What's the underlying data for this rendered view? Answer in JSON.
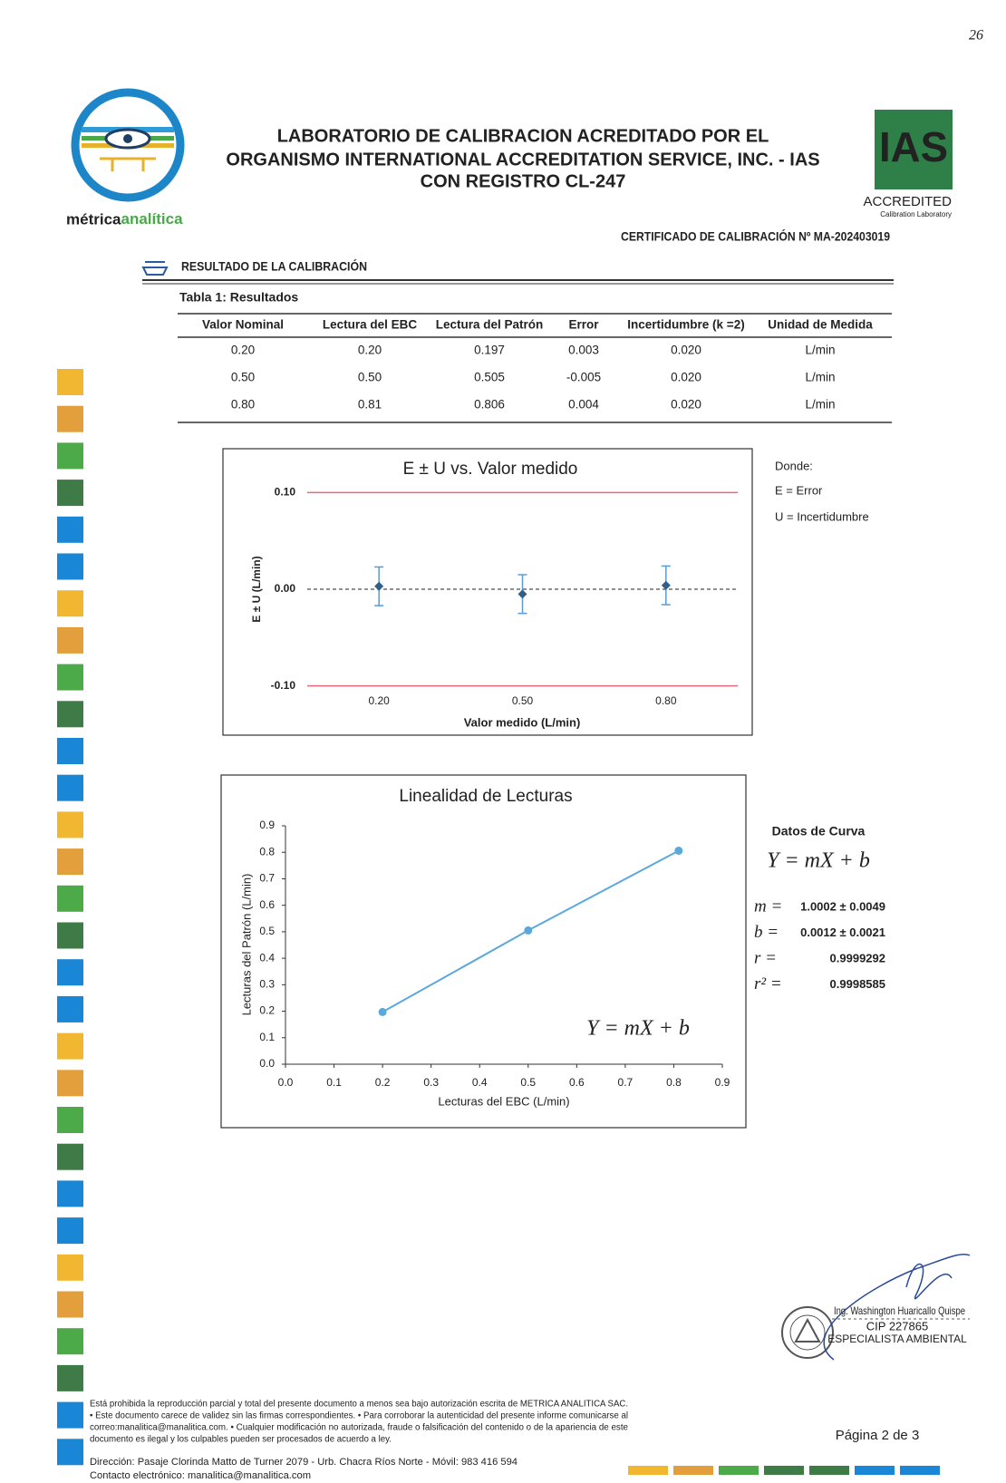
{
  "page_number": "26",
  "header": {
    "brand_1": "métrica",
    "brand_2": "analítica",
    "title_lines": [
      "LABORATORIO DE CALIBRACION ACREDITADO POR EL",
      "ORGANISMO INTERNATIONAL ACCREDITATION SERVICE, INC. - IAS",
      "CON REGISTRO CL-247"
    ],
    "badge": {
      "mark": "IAS",
      "status": "ACCREDITED",
      "scope": "Calibration Laboratory"
    },
    "certificate": "CERTIFICADO DE CALIBRACIÓN Nº MA-202403019"
  },
  "section": "RESULTADO DE LA CALIBRACIÓN",
  "table": {
    "caption": "Tabla 1: Resultados",
    "columns": [
      "Valor Nominal",
      "Lectura del EBC",
      "Lectura del Patrón",
      "Error",
      "Incertidumbre (k =2)",
      "Unidad de Medida"
    ],
    "rows": [
      [
        "0.20",
        "0.20",
        "0.197",
        "0.003",
        "0.020",
        "L/min"
      ],
      [
        "0.50",
        "0.50",
        "0.505",
        "-0.005",
        "0.020",
        "L/min"
      ],
      [
        "0.80",
        "0.81",
        "0.806",
        "0.004",
        "0.020",
        "L/min"
      ]
    ]
  },
  "chart_data": [
    {
      "type": "errorbar",
      "title": "E ± U vs. Valor medido",
      "xlabel": "Valor medido (L/min)",
      "ylabel": "E ± U (L/min)",
      "categories": [
        "0.20",
        "0.50",
        "0.80"
      ],
      "values": [
        0.003,
        -0.005,
        0.004
      ],
      "errors": [
        0.02,
        0.02,
        0.02
      ],
      "color": "#5b9bd5",
      "marker_color": "#2f5f8a",
      "ylim": [
        -0.12,
        0.12
      ],
      "yticks": [
        {
          "value": 0.1,
          "label": "0.10"
        },
        {
          "value": 0,
          "label": "0.00"
        },
        {
          "value": -0.1,
          "label": "-0.10"
        }
      ],
      "limits": [
        0.1,
        -0.1
      ],
      "limit_color": "#e8697a"
    },
    {
      "type": "line",
      "title": "Linealidad de Lecturas",
      "xlabel": "Lecturas del EBC (L/min)",
      "ylabel": "Lecturas del Patrón (L/min)",
      "x": [
        0.2,
        0.5,
        0.81
      ],
      "values": [
        0.197,
        0.505,
        0.806
      ],
      "color": "#5ba8dc",
      "annotation": "Y = mX + b",
      "xlim": [
        0,
        0.9
      ],
      "ylim": [
        0,
        0.9
      ],
      "xticks": [
        {
          "value": 0,
          "label": "0.0"
        },
        0.1,
        0.2,
        0.3,
        0.4,
        0.5,
        0.6,
        0.7,
        0.8,
        0.9
      ],
      "yticks": [
        {
          "value": 0,
          "label": "0.0"
        },
        0.1,
        0.2,
        0.3,
        0.4,
        0.5,
        0.6,
        0.7,
        0.8,
        0.9
      ]
    }
  ],
  "legend_note": {
    "title": "Donde:",
    "lines": [
      "E = Error",
      "U = Incertidumbre"
    ]
  },
  "curve": {
    "title": "Datos de Curva",
    "equation": "Y = mX + b",
    "params": [
      {
        "symbol": "m =",
        "value": "1.0002 ± 0.0049"
      },
      {
        "symbol": "b =",
        "value": "0.0012 ± 0.0021"
      },
      {
        "symbol": "r =",
        "value": "0.9999292"
      },
      {
        "symbol": "r² =",
        "value": "0.9998585"
      }
    ]
  },
  "signature": {
    "name": "Ing. Washington Huaricallo Quispe",
    "id": "CIP 227865",
    "role": "ESPECIALISTA AMBIENTAL"
  },
  "footer": {
    "notice": [
      "Está prohibida la reproducción parcial y total del presente documento a menos sea bajo autorización escrita de METRICA ANALITICA SAC.",
      "• Este documento carece de validez sin las firmas correspondientes. • Para corroborar la autenticidad del presente informe comunicarse al",
      "correo:manalitica@manalitica.com. • Cualquier modificación no autorizada, fraude o falsificación del contenido o de la apariencia de este",
      "documento es ilegal y los culpables pueden ser procesados de acuerdo a ley."
    ],
    "page": "Página 2 de 3",
    "address": "Dirección: Pasaje Clorinda Matto de Turner 2079 - Urb. Chacra Ríos Norte - Móvil: 983 416 594",
    "contact": "Contacto electrónico: manalitica@manalitica.com"
  }
}
